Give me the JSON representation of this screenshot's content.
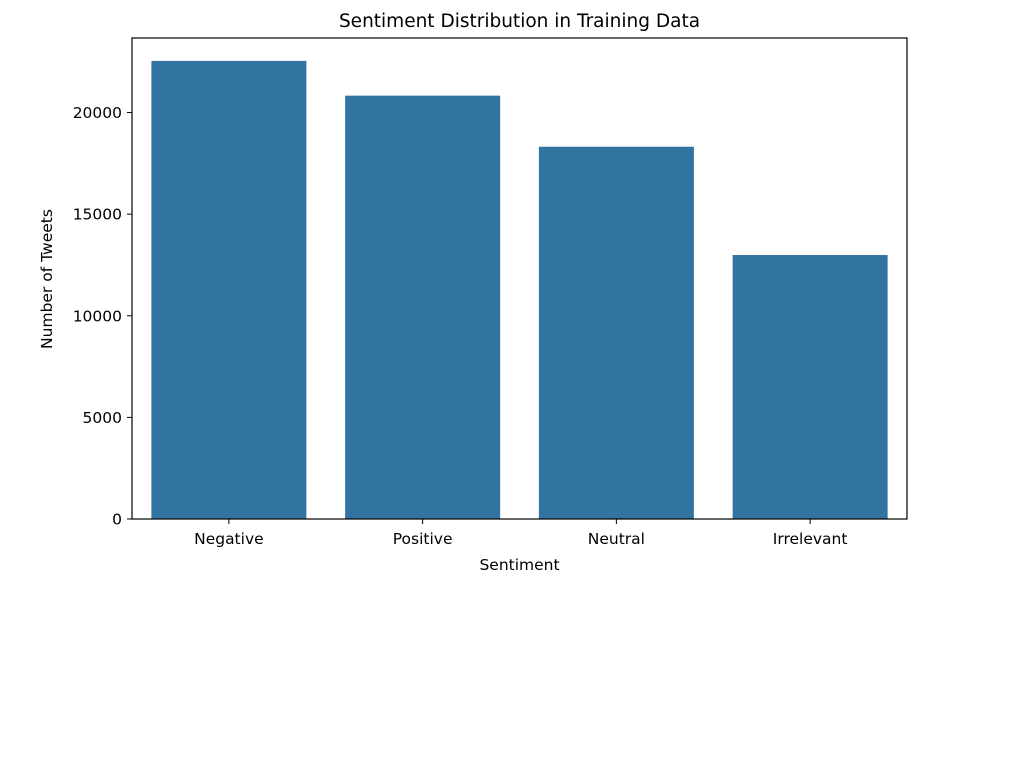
{
  "chart_data": {
    "type": "bar",
    "title": "Sentiment Distribution in Training Data",
    "xlabel": "Sentiment",
    "ylabel": "Number of Tweets",
    "categories": [
      "Negative",
      "Positive",
      "Neutral",
      "Irrelevant"
    ],
    "values": [
      22542,
      20832,
      18318,
      12990
    ],
    "ylim": [
      0,
      23669
    ],
    "yticks": [
      0,
      5000,
      10000,
      15000,
      20000
    ],
    "ytick_labels": [
      "0",
      "5000",
      "10000",
      "15000",
      "20000"
    ],
    "grid": false,
    "legend": "none",
    "bar_color": "#3274a1"
  }
}
